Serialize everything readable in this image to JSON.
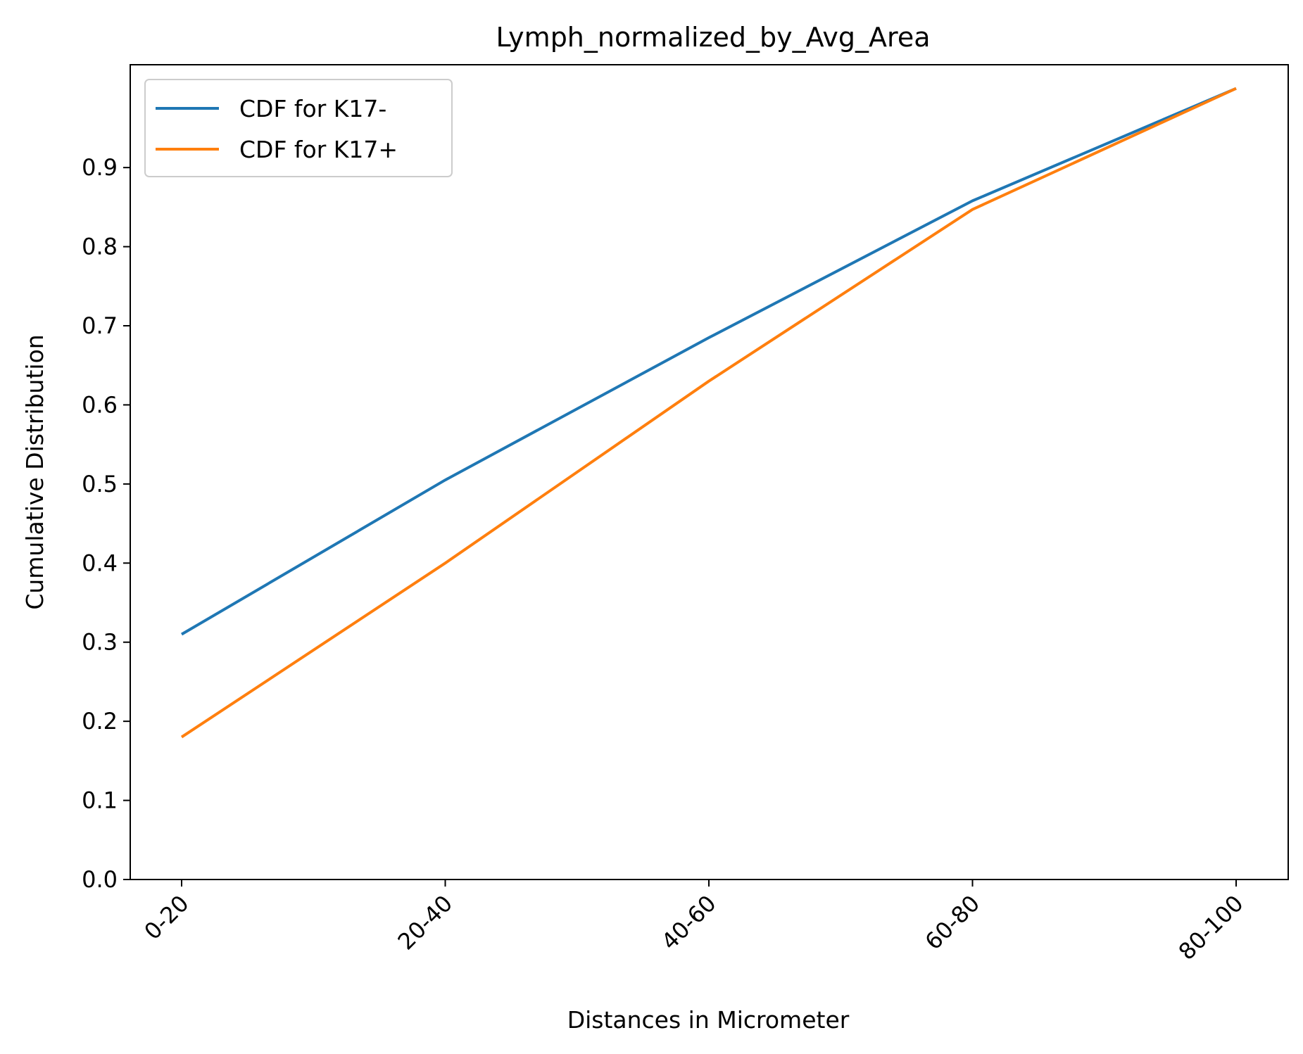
{
  "chart_data": {
    "type": "line",
    "title": "Lymph_normalized_by_Avg_Area",
    "xlabel": "Distances in Micrometer",
    "ylabel": "Cumulative Distribution",
    "categories": [
      "0-20",
      "20-40",
      "40-60",
      "60-80",
      "80-100"
    ],
    "y_ticks": [
      "0.0",
      "0.1",
      "0.2",
      "0.3",
      "0.4",
      "0.5",
      "0.6",
      "0.7",
      "0.8",
      "0.9"
    ],
    "ylim": [
      0,
      1.03
    ],
    "grid": false,
    "legend_position": "top-left",
    "series": [
      {
        "name": "CDF for K17-",
        "color": "#1f77b4",
        "values": [
          0.31,
          0.505,
          0.685,
          0.858,
          1.0
        ]
      },
      {
        "name": "CDF for K17+",
        "color": "#ff7f0e",
        "values": [
          0.18,
          0.4,
          0.63,
          0.847,
          1.0
        ]
      }
    ]
  }
}
